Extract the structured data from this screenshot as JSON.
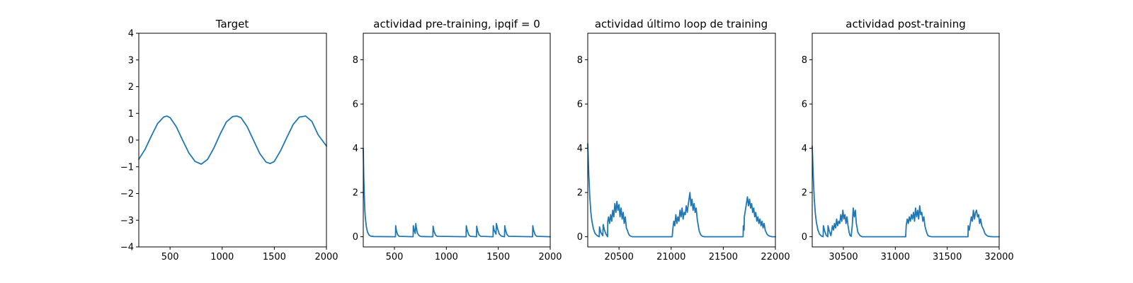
{
  "chart_data": [
    {
      "type": "line",
      "title": "Target",
      "xlabel": "",
      "ylabel": "",
      "xlim": [
        200,
        2000
      ],
      "ylim": [
        -4,
        4
      ],
      "xticks": [
        500,
        1000,
        1500,
        2000
      ],
      "xtick_labels": [
        "500",
        "1000",
        "1500",
        "2000"
      ],
      "yticks": [
        -4,
        -3,
        -2,
        -1,
        0,
        1,
        2,
        3,
        4
      ],
      "ytick_labels": [
        "−4",
        "−3",
        "−2",
        "−1",
        "0",
        "1",
        "2",
        "3",
        "4"
      ],
      "grid": false,
      "series": [
        {
          "color": "#1f77b4",
          "x": [
            200,
            260,
            320,
            380,
            440,
            470,
            500,
            560,
            620,
            680,
            740,
            800,
            860,
            920,
            980,
            1040,
            1100,
            1140,
            1180,
            1240,
            1300,
            1360,
            1420,
            1460,
            1500,
            1560,
            1620,
            1680,
            1740,
            1800,
            1860,
            1920,
            1980,
            2000
          ],
          "y": [
            -0.72,
            -0.35,
            0.15,
            0.62,
            0.87,
            0.9,
            0.84,
            0.5,
            0.0,
            -0.48,
            -0.8,
            -0.9,
            -0.72,
            -0.3,
            0.22,
            0.68,
            0.88,
            0.9,
            0.84,
            0.5,
            0.0,
            -0.5,
            -0.82,
            -0.88,
            -0.8,
            -0.4,
            0.1,
            0.58,
            0.86,
            0.9,
            0.7,
            0.2,
            -0.12,
            -0.22
          ]
        }
      ]
    },
    {
      "type": "line",
      "title": "actividad pre-training, ipqif = 0",
      "xlabel": "",
      "ylabel": "",
      "xlim": [
        200,
        2000
      ],
      "ylim": [
        -0.46,
        9.2
      ],
      "xticks": [
        500,
        1000,
        1500,
        2000
      ],
      "xtick_labels": [
        "500",
        "1000",
        "1500",
        "2000"
      ],
      "yticks": [
        0,
        2,
        4,
        6,
        8
      ],
      "ytick_labels": [
        "0",
        "2",
        "4",
        "6",
        "8"
      ],
      "grid": false,
      "series": [
        {
          "color": "#1f77b4",
          "x": [
            200,
            205,
            210,
            215,
            220,
            230,
            240,
            255,
            270,
            300,
            510,
            512,
            518,
            530,
            545,
            680,
            682,
            690,
            700,
            706,
            710,
            722,
            740,
            760,
            870,
            872,
            880,
            895,
            910,
            1190,
            1192,
            1200,
            1215,
            1230,
            1290,
            1292,
            1300,
            1315,
            1330,
            1450,
            1452,
            1460,
            1478,
            1482,
            1492,
            1510,
            1530,
            1560,
            1562,
            1570,
            1585,
            1600,
            1830,
            1832,
            1840,
            1855,
            1870,
            2000
          ],
          "y": [
            4.0,
            2.7,
            1.8,
            1.2,
            0.85,
            0.45,
            0.22,
            0.08,
            0.03,
            0.01,
            0.0,
            0.5,
            0.3,
            0.1,
            0.02,
            0.0,
            0.5,
            0.3,
            0.15,
            0.6,
            0.42,
            0.15,
            0.04,
            0.01,
            0.0,
            0.48,
            0.28,
            0.08,
            0.02,
            0.0,
            0.5,
            0.3,
            0.09,
            0.02,
            0.0,
            0.48,
            0.28,
            0.08,
            0.02,
            0.0,
            0.5,
            0.3,
            0.12,
            0.6,
            0.38,
            0.12,
            0.03,
            0.0,
            0.5,
            0.3,
            0.09,
            0.02,
            0.0,
            0.5,
            0.3,
            0.09,
            0.02,
            0.0
          ]
        }
      ]
    },
    {
      "type": "line",
      "title": "actividad último loop de training",
      "xlabel": "",
      "ylabel": "",
      "xlim": [
        20200,
        22000
      ],
      "ylim": [
        -0.46,
        9.2
      ],
      "xticks": [
        20500,
        21000,
        21500,
        22000
      ],
      "xtick_labels": [
        "20500",
        "21000",
        "21500",
        "22000"
      ],
      "yticks": [
        0,
        2,
        4,
        6,
        8
      ],
      "ytick_labels": [
        "0",
        "2",
        "4",
        "6",
        "8"
      ],
      "grid": false,
      "series": [
        {
          "color": "#1f77b4",
          "x": [
            20200,
            20210,
            20220,
            20230,
            20240,
            20255,
            20270,
            20290,
            20310,
            20313,
            20325,
            20345,
            20348,
            20360,
            20375,
            20390,
            20392,
            20400,
            20410,
            20420,
            20430,
            20440,
            20450,
            20460,
            20470,
            20480,
            20490,
            20500,
            20510,
            20520,
            20530,
            20540,
            20550,
            20560,
            20570,
            20580,
            20590,
            20600,
            20615,
            20630,
            20650,
            21010,
            21015,
            21025,
            21035,
            21045,
            21055,
            21065,
            21075,
            21085,
            21095,
            21105,
            21115,
            21125,
            21135,
            21145,
            21155,
            21165,
            21175,
            21180,
            21190,
            21200,
            21210,
            21220,
            21230,
            21240,
            21250,
            21260,
            21270,
            21285,
            21300,
            21320,
            21690,
            21692,
            21700,
            21702,
            21712,
            21722,
            21732,
            21742,
            21752,
            21762,
            21772,
            21782,
            21792,
            21802,
            21812,
            21822,
            21832,
            21842,
            21852,
            21862,
            21872,
            21882,
            21892,
            21902,
            21912,
            21922,
            21935,
            21950,
            21970,
            22000
          ],
          "y": [
            4.2,
            2.8,
            1.8,
            1.1,
            0.7,
            0.35,
            0.15,
            0.05,
            0.0,
            0.45,
            0.2,
            0.05,
            0.55,
            0.3,
            0.12,
            0.0,
            0.7,
            0.9,
            0.6,
            1.0,
            0.7,
            1.2,
            0.9,
            1.5,
            1.1,
            1.6,
            1.2,
            1.45,
            0.9,
            1.3,
            0.8,
            1.1,
            0.6,
            0.9,
            0.4,
            0.3,
            0.15,
            0.06,
            0.02,
            0.0,
            0.0,
            0.0,
            0.3,
            0.7,
            0.5,
            1.0,
            0.6,
            0.9,
            0.7,
            1.2,
            0.9,
            1.3,
            0.8,
            1.1,
            1.0,
            1.4,
            1.1,
            1.5,
            1.8,
            2.0,
            1.4,
            1.7,
            1.2,
            1.5,
            1.1,
            1.3,
            0.8,
            0.5,
            0.25,
            0.08,
            0.02,
            0.0,
            0.0,
            0.5,
            0.3,
            0.9,
            1.2,
            1.5,
            1.8,
            1.4,
            1.7,
            1.3,
            1.5,
            1.1,
            1.3,
            0.9,
            1.1,
            0.7,
            0.9,
            0.6,
            0.8,
            0.5,
            0.7,
            0.4,
            0.6,
            0.3,
            0.2,
            0.1,
            0.05,
            0.02,
            0.0,
            0.0
          ]
        }
      ]
    },
    {
      "type": "line",
      "title": "actividad post-training",
      "xlabel": "",
      "ylabel": "",
      "xlim": [
        30200,
        32000
      ],
      "ylim": [
        -0.46,
        9.2
      ],
      "xticks": [
        30500,
        31000,
        31500,
        32000
      ],
      "xtick_labels": [
        "30500",
        "31000",
        "31500",
        "32000"
      ],
      "yticks": [
        0,
        2,
        4,
        6,
        8
      ],
      "ytick_labels": [
        "0",
        "2",
        "4",
        "6",
        "8"
      ],
      "grid": false,
      "series": [
        {
          "color": "#1f77b4",
          "x": [
            30200,
            30210,
            30220,
            30230,
            30240,
            30255,
            30270,
            30290,
            30305,
            30308,
            30320,
            30335,
            30350,
            30352,
            30365,
            30380,
            30395,
            30405,
            30415,
            30425,
            30435,
            30445,
            30455,
            30465,
            30475,
            30485,
            30495,
            30505,
            30515,
            30525,
            30535,
            30545,
            30555,
            30565,
            30575,
            30585,
            30595,
            30605,
            30615,
            30625,
            30640,
            30660,
            30680,
            31100,
            31105,
            31115,
            31125,
            31135,
            31145,
            31155,
            31165,
            31175,
            31185,
            31195,
            31205,
            31215,
            31225,
            31235,
            31245,
            31255,
            31265,
            31275,
            31285,
            31295,
            31305,
            31315,
            31330,
            31350,
            31700,
            31702,
            31712,
            31722,
            31732,
            31742,
            31752,
            31762,
            31772,
            31782,
            31792,
            31802,
            31812,
            31822,
            31832,
            31842,
            31852,
            31862,
            31875,
            31890,
            31910,
            31940,
            32000
          ],
          "y": [
            4.1,
            2.7,
            1.7,
            1.05,
            0.65,
            0.3,
            0.12,
            0.03,
            0.0,
            0.5,
            0.25,
            0.06,
            0.0,
            0.5,
            0.25,
            0.05,
            0.5,
            0.3,
            0.6,
            0.4,
            0.8,
            0.5,
            0.7,
            0.6,
            1.0,
            0.7,
            1.2,
            0.8,
            1.0,
            0.6,
            0.9,
            0.5,
            0.2,
            0.05,
            0.02,
            0.5,
            1.3,
            0.9,
            1.2,
            0.6,
            0.2,
            0.05,
            0.0,
            0.0,
            0.5,
            0.8,
            0.6,
            0.9,
            0.7,
            1.0,
            0.8,
            1.1,
            0.7,
            1.3,
            0.9,
            1.2,
            0.8,
            1.4,
            1.0,
            1.1,
            0.7,
            0.9,
            0.5,
            0.3,
            0.15,
            0.05,
            0.02,
            0.0,
            0.0,
            0.5,
            0.3,
            0.6,
            0.9,
            0.7,
            1.2,
            0.8,
            1.1,
            1.2,
            0.9,
            1.0,
            0.6,
            0.8,
            0.5,
            0.4,
            0.3,
            0.15,
            0.08,
            0.03,
            0.01,
            0.0,
            0.0
          ]
        }
      ]
    }
  ]
}
